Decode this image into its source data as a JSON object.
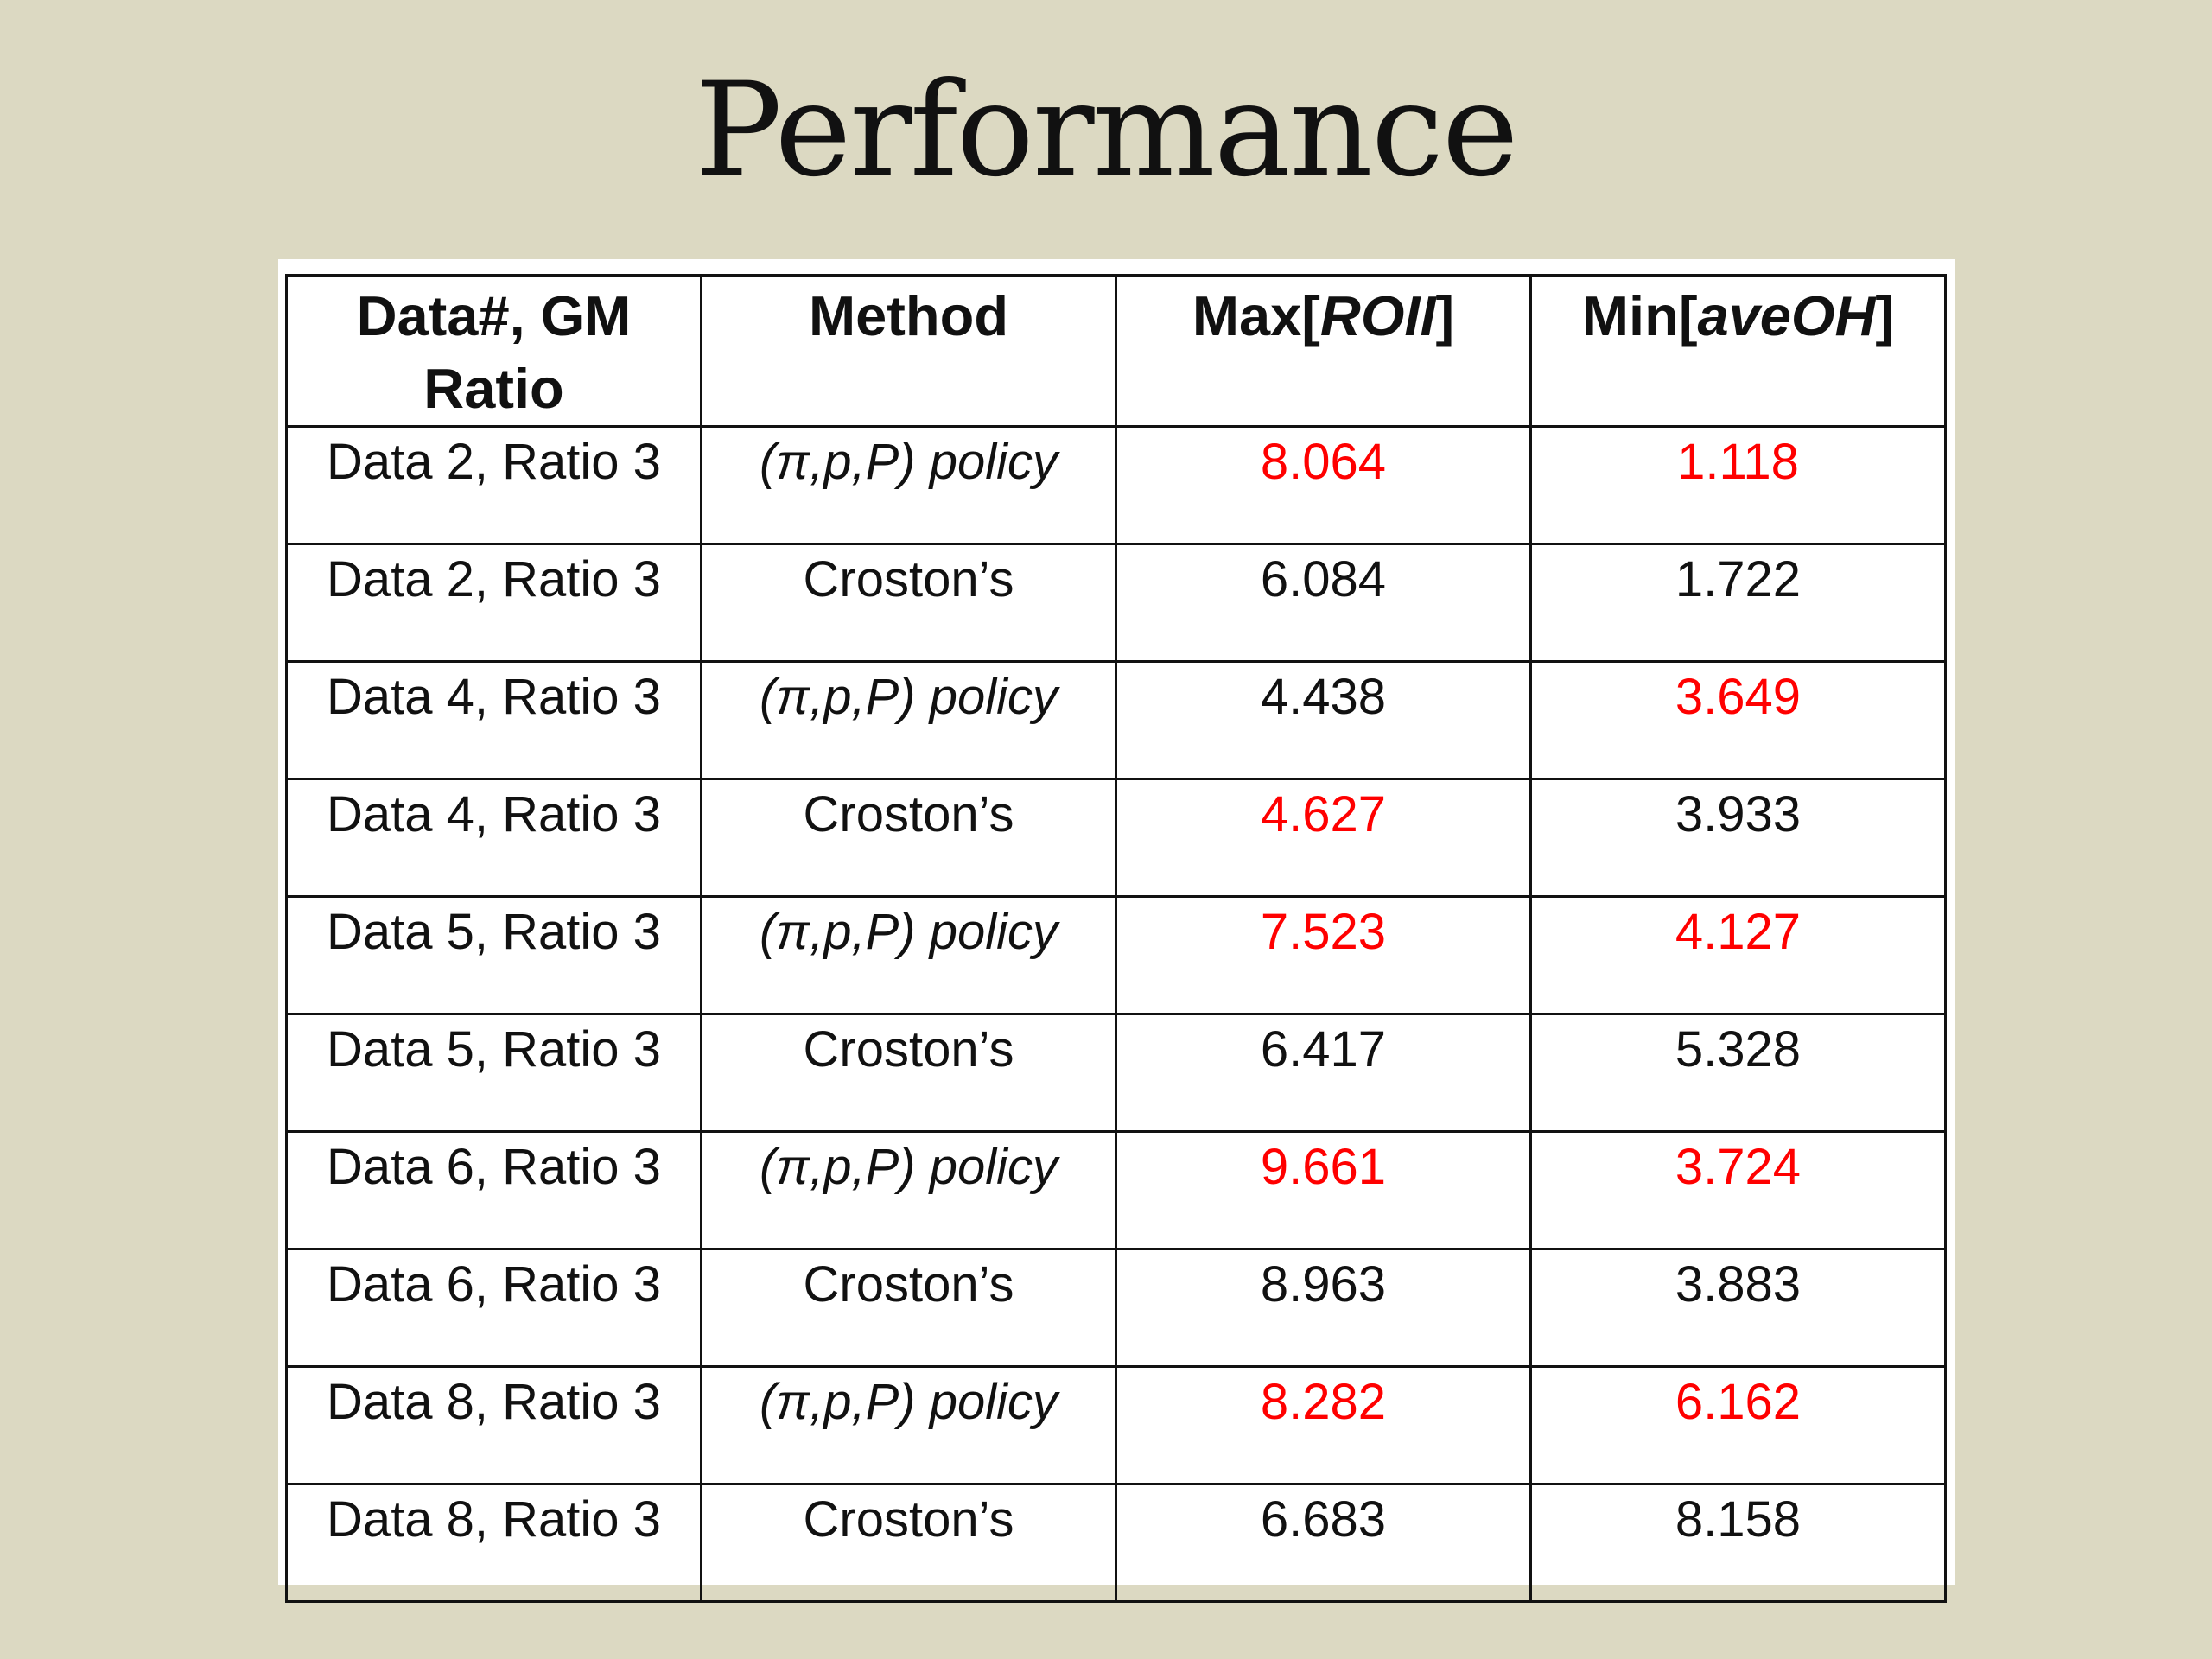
{
  "title": "Performance",
  "table": {
    "headers": [
      {
        "pre": "Data#, GM Ratio",
        "ital": "",
        "post": ""
      },
      {
        "pre": "Method",
        "ital": "",
        "post": ""
      },
      {
        "pre": "Max[",
        "ital": "ROII",
        "post": "]"
      },
      {
        "pre": "Min[",
        "ital": "aveOH",
        "post": "]"
      }
    ],
    "rows": [
      {
        "data": "Data 2, Ratio 3",
        "method": "(π,p,P) policy",
        "max_roii": "8.064",
        "min_aveoh": "1.118",
        "highlight": [
          true,
          true
        ]
      },
      {
        "data": "Data 2, Ratio 3",
        "method": "Croston’s",
        "max_roii": "6.084",
        "min_aveoh": "1.722",
        "highlight": [
          false,
          false
        ]
      },
      {
        "data": "Data 4, Ratio 3",
        "method": "(π,p,P) policy",
        "max_roii": "4.438",
        "min_aveoh": "3.649",
        "highlight": [
          false,
          true
        ]
      },
      {
        "data": "Data 4, Ratio 3",
        "method": "Croston’s",
        "max_roii": "4.627",
        "min_aveoh": "3.933",
        "highlight": [
          true,
          false
        ]
      },
      {
        "data": "Data 5, Ratio 3",
        "method": "(π,p,P) policy",
        "max_roii": "7.523",
        "min_aveoh": "4.127",
        "highlight": [
          true,
          true
        ]
      },
      {
        "data": "Data 5, Ratio 3",
        "method": "Croston’s",
        "max_roii": "6.417",
        "min_aveoh": "5.328",
        "highlight": [
          false,
          false
        ]
      },
      {
        "data": "Data 6, Ratio 3",
        "method": "(π,p,P) policy",
        "max_roii": "9.661",
        "min_aveoh": "3.724",
        "highlight": [
          true,
          true
        ]
      },
      {
        "data": "Data 6, Ratio 3",
        "method": "Croston’s",
        "max_roii": "8.963",
        "min_aveoh": "3.883",
        "highlight": [
          false,
          false
        ]
      },
      {
        "data": "Data 8, Ratio 3",
        "method": "(π,p,P) policy",
        "max_roii": "8.282",
        "min_aveoh": "6.162",
        "highlight": [
          true,
          true
        ]
      },
      {
        "data": "Data 8, Ratio 3",
        "method": "Croston’s",
        "max_roii": "6.683",
        "min_aveoh": "8.158",
        "highlight": [
          false,
          false
        ]
      }
    ]
  },
  "colors": {
    "background": "#dcd9c2",
    "highlight": "#ff0000",
    "text": "#111111"
  }
}
